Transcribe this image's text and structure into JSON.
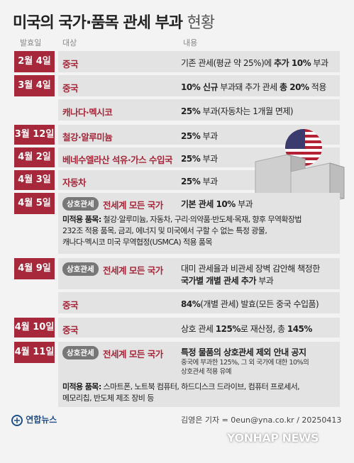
{
  "title": {
    "main": "미국의 국가·품목 관세 부과",
    "sub": "현황"
  },
  "headers": {
    "date": "발효일",
    "target": "대상",
    "content": "내용"
  },
  "rows": {
    "r1": {
      "date": "2월 4일",
      "target": "중국",
      "content_pre": "기존 관세(평균 약 25%)에 ",
      "content_bold": "추가 10%",
      "content_post": " 부과"
    },
    "r2": {
      "date": "3월 4일",
      "target": "중국",
      "content_b1": "10% 신규",
      "content_mid": " 부과돼 추가 관세 ",
      "content_b2": "총 20%",
      "content_post": " 적용"
    },
    "r2b": {
      "target": "캐나다·멕시코",
      "content_bold": "25%",
      "content_post": " 부과(자동차는 1개월 면제)"
    },
    "r3": {
      "date": "3월 12일",
      "target": "철강·알루미늄",
      "content_bold": "25%",
      "content_post": " 부과"
    },
    "r4": {
      "date": "4월 2일",
      "target": "베네수엘라산 석유·가스 수입국",
      "content_bold": "25%",
      "content_post": " 부과"
    },
    "r5": {
      "date": "4월 3일",
      "target": "자동차",
      "content_bold": "25%",
      "content_post": " 부과"
    },
    "r6": {
      "date": "4월 5일",
      "tag": "상호관세",
      "target": "전세계 모든 국가",
      "content_bold": "기본 관세 10%",
      "content_post": " 부과",
      "note_label": "미적용 품목:",
      "note_line1": " 철강·알루미늄, 자동차, 구리·의약품·반도체·목재, 향후 무역확장법",
      "note_line2": "232조 적용 품목, 금괴, 에너지 및 미국에서 구할 수 없는 특정 광물,",
      "note_line3": "캐나다·멕시코 미국 무역협정(USMCA) 적용 품목"
    },
    "r7": {
      "date": "4월 9일",
      "tag": "상호관세",
      "target": "전세계 모든 국가",
      "content_line1": "대미 관세율과 비관세 장벽 감안해 책정한",
      "content_bold": "국가별 개별 관세 추가",
      "content_post": " 부과"
    },
    "r7b": {
      "target": "중국",
      "content_bold": "84%",
      "content_post": "(개별 관세) 발효(모든 중국 수입품)"
    },
    "r8": {
      "date": "4월 10일",
      "target": "중국",
      "content_pre": "상호 관세 ",
      "content_b1": "125%",
      "content_mid": "로 재산정, 총 ",
      "content_b2": "145%"
    },
    "r9": {
      "date": "4월 11일",
      "tag": "상호관세",
      "target": "전세계 모든 국가",
      "content_bold": "특정 물품의 상호관세 제외 안내 공지",
      "small_line1": "중국에 부과한 125%, 그 외 국가에 대한 10%의",
      "small_line2": "상호관세 적용 유예",
      "note_label": "미적용 품목:",
      "note_line1": " 스마트폰, 노트북 컴퓨터, 하드디스크 드라이브, 컴퓨터 프로세서,",
      "note_line2": "메모리칩, 반도체 제조 장비 등"
    }
  },
  "footer": {
    "logo": "연합뉴스",
    "credit": "김영은 기자 = 0eun@yna.co.kr / 20250413",
    "watermark": "YONHAP NEWS"
  },
  "colors": {
    "accent": "#a6283a",
    "rowbg": "#e3e3e3",
    "tag": "#777777"
  }
}
